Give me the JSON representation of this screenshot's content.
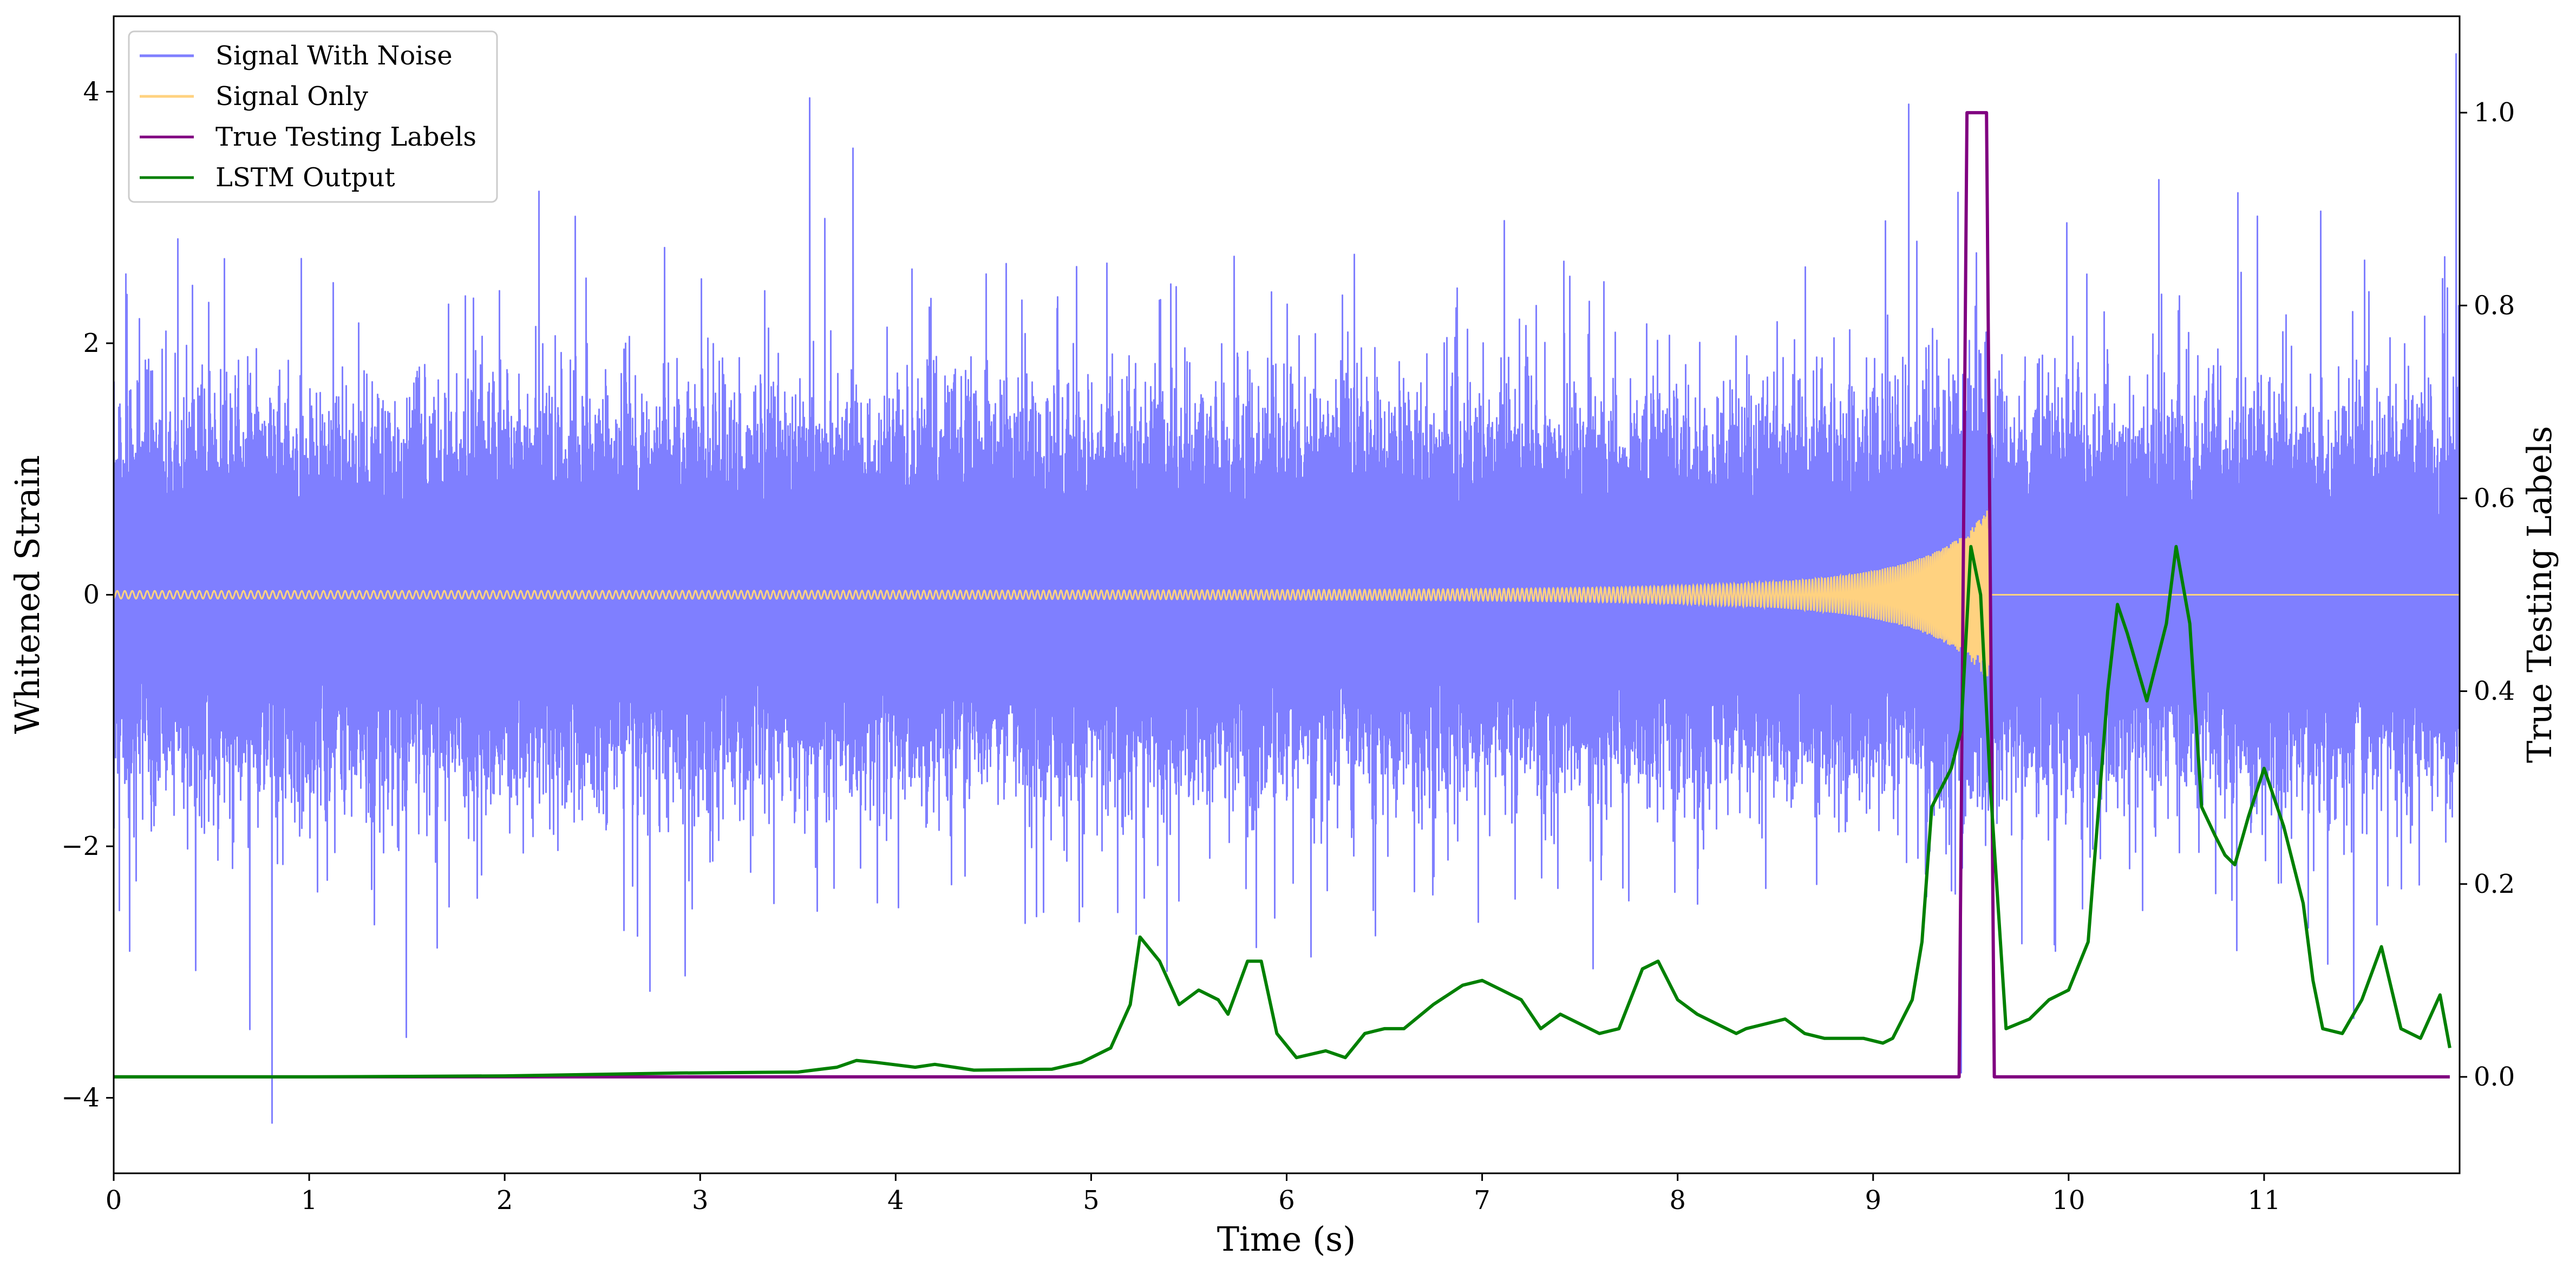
{
  "chart_data": {
    "type": "line",
    "title": "",
    "xlabel": "Time (s)",
    "ylabel": "Whitened Strain",
    "y2label": "True Testing Labels",
    "xlim": [
      0,
      12
    ],
    "ylim": [
      -4.6,
      4.6
    ],
    "y2lim": [
      -0.1,
      1.1
    ],
    "xticks": [
      0,
      1,
      2,
      3,
      4,
      5,
      6,
      7,
      8,
      9,
      10,
      11
    ],
    "xtick_labels": [
      "0",
      "1",
      "2",
      "3",
      "4",
      "5",
      "6",
      "7",
      "8",
      "9",
      "10",
      "11"
    ],
    "yticks": [
      -4,
      -2,
      0,
      2,
      4
    ],
    "ytick_labels": [
      "−4",
      "−2",
      "0",
      "2",
      "4"
    ],
    "y2ticks": [
      0.0,
      0.2,
      0.4,
      0.6,
      0.8,
      1.0
    ],
    "y2tick_labels": [
      "0.0",
      "0.2",
      "0.4",
      "0.6",
      "0.8",
      "1.0"
    ],
    "grid": false,
    "legend_position": "top-left",
    "series": [
      {
        "name": "Signal With Noise",
        "axis": "left",
        "color": "#7f7fff",
        "description_values": "dense noise band, mostly between -1.5 and 1.5, spikes to about 3.9 and down to -4.2",
        "peaks": [
          [
            0.06,
            2.55
          ],
          [
            0.81,
            -4.2
          ],
          [
            3.56,
            3.95
          ],
          [
            3.78,
            3.55
          ],
          [
            9.18,
            3.9
          ],
          [
            9.45,
            -3.8
          ],
          [
            10.46,
            3.3
          ],
          [
            11.98,
            4.3
          ]
        ]
      },
      {
        "name": "Signal Only",
        "axis": "left",
        "color": "#ffd280",
        "chirp_start_time": 0,
        "chirp_end_time": 9.6,
        "amplitude_start": 0.03,
        "amplitude_peak": 0.75
      },
      {
        "name": "True Testing Labels",
        "axis": "right",
        "color": "#800080",
        "x": [
          0,
          9.44,
          9.48,
          9.58,
          9.62,
          11.95
        ],
        "y": [
          0,
          0,
          1,
          1,
          0,
          0
        ]
      },
      {
        "name": "LSTM Output",
        "axis": "right",
        "color": "#008000",
        "x": [
          0,
          1,
          2,
          2.9,
          3.5,
          3.7,
          3.8,
          3.9,
          4.1,
          4.2,
          4.4,
          4.8,
          4.95,
          5.1,
          5.2,
          5.25,
          5.35,
          5.45,
          5.55,
          5.65,
          5.7,
          5.8,
          5.87,
          5.95,
          6.05,
          6.2,
          6.3,
          6.4,
          6.5,
          6.6,
          6.75,
          6.9,
          7.0,
          7.1,
          7.2,
          7.3,
          7.4,
          7.6,
          7.7,
          7.82,
          7.9,
          8.0,
          8.1,
          8.2,
          8.3,
          8.35,
          8.45,
          8.55,
          8.65,
          8.75,
          8.85,
          8.95,
          9.05,
          9.1,
          9.2,
          9.25,
          9.3,
          9.4,
          9.45,
          9.5,
          9.55,
          9.6,
          9.68,
          9.8,
          9.9,
          10.0,
          10.1,
          10.2,
          10.25,
          10.3,
          10.4,
          10.5,
          10.55,
          10.62,
          10.68,
          10.75,
          10.8,
          10.85,
          10.92,
          11.0,
          11.1,
          11.2,
          11.25,
          11.3,
          11.4,
          11.5,
          11.6,
          11.7,
          11.8,
          11.9,
          11.95
        ],
        "y": [
          0.0,
          0.0,
          0.001,
          0.004,
          0.005,
          0.01,
          0.017,
          0.015,
          0.01,
          0.013,
          0.007,
          0.008,
          0.015,
          0.03,
          0.075,
          0.145,
          0.12,
          0.075,
          0.09,
          0.08,
          0.065,
          0.12,
          0.12,
          0.045,
          0.02,
          0.027,
          0.02,
          0.045,
          0.05,
          0.05,
          0.075,
          0.095,
          0.1,
          0.09,
          0.08,
          0.05,
          0.065,
          0.045,
          0.05,
          0.112,
          0.12,
          0.08,
          0.065,
          0.055,
          0.045,
          0.05,
          0.055,
          0.06,
          0.045,
          0.04,
          0.04,
          0.04,
          0.035,
          0.04,
          0.08,
          0.14,
          0.28,
          0.32,
          0.36,
          0.55,
          0.5,
          0.3,
          0.05,
          0.06,
          0.08,
          0.09,
          0.14,
          0.4,
          0.49,
          0.46,
          0.39,
          0.47,
          0.55,
          0.47,
          0.28,
          0.25,
          0.23,
          0.22,
          0.27,
          0.32,
          0.26,
          0.18,
          0.1,
          0.05,
          0.045,
          0.08,
          0.135,
          0.05,
          0.04,
          0.085,
          0.03
        ]
      }
    ]
  },
  "legend": {
    "items": [
      {
        "label": "Signal With Noise",
        "color": "#7f7fff"
      },
      {
        "label": "Signal Only",
        "color": "#ffd280"
      },
      {
        "label": "True Testing Labels",
        "color": "#800080"
      },
      {
        "label": "LSTM Output",
        "color": "#008000"
      }
    ]
  }
}
